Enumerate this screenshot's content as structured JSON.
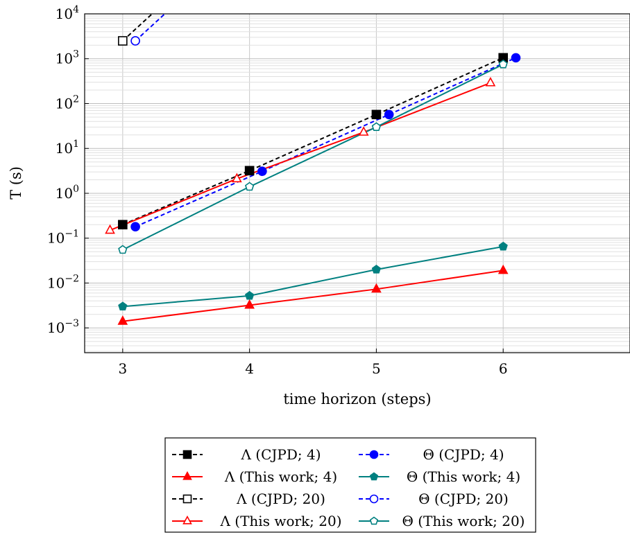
{
  "chart_data": {
    "type": "line",
    "xlabel": "time horizon (steps)",
    "ylabel": "T (s)",
    "y_scale": "log",
    "xlim": [
      2.7,
      7.0
    ],
    "ylim": [
      0.00028,
      10000
    ],
    "x_ticks": [
      3,
      4,
      5,
      6
    ],
    "x_tick_labels": [
      "3",
      "4",
      "5",
      "6"
    ],
    "y_ticks": [
      {
        "value": 0.001,
        "base": "10",
        "exp": "−3"
      },
      {
        "value": 0.01,
        "base": "10",
        "exp": "−2"
      },
      {
        "value": 0.1,
        "base": "10",
        "exp": "−1"
      },
      {
        "value": 1,
        "base": "10",
        "exp": "0"
      },
      {
        "value": 10,
        "base": "10",
        "exp": "1"
      },
      {
        "value": 100,
        "base": "10",
        "exp": "2"
      },
      {
        "value": 1000,
        "base": "10",
        "exp": "3"
      },
      {
        "value": 10000,
        "base": "10",
        "exp": "4"
      }
    ],
    "grid": true,
    "legend_position": "below",
    "series": [
      {
        "name": "Λ (CJPD; 4)",
        "color": "#000000",
        "dash": "6,4",
        "marker": "square",
        "filled": true,
        "x": [
          3,
          4,
          5,
          6
        ],
        "y": [
          0.2,
          3.2,
          57,
          1050
        ]
      },
      {
        "name": "Θ (CJPD; 4)",
        "color": "#0000ff",
        "dash": "6,4",
        "marker": "circle",
        "filled": true,
        "x": [
          3.1,
          4.1,
          5.1,
          6.1
        ],
        "y": [
          0.18,
          3.1,
          57,
          1050
        ]
      },
      {
        "name": "Λ (This work; 4)",
        "color": "#ff0000",
        "dash": "",
        "marker": "triangle",
        "filled": true,
        "x": [
          3,
          4,
          5,
          6
        ],
        "y": [
          0.0014,
          0.0032,
          0.0073,
          0.019
        ]
      },
      {
        "name": "Θ (This work; 4)",
        "color": "#008080",
        "dash": "",
        "marker": "pentagon",
        "filled": true,
        "x": [
          3,
          4,
          5,
          6
        ],
        "y": [
          0.003,
          0.0052,
          0.02,
          0.065
        ]
      },
      {
        "name": "Λ (CJPD; 20)",
        "color": "#000000",
        "dash": "6,4",
        "marker": "square",
        "filled": false,
        "x": [
          3,
          3.3
        ],
        "y": [
          2500,
          15000
        ]
      },
      {
        "name": "Θ (CJPD; 20)",
        "color": "#0000ff",
        "dash": "6,4",
        "marker": "circle",
        "filled": false,
        "x": [
          3.1,
          3.4
        ],
        "y": [
          2500,
          15000
        ]
      },
      {
        "name": "Λ (This work; 20)",
        "color": "#ff0000",
        "dash": "",
        "marker": "triangle",
        "filled": false,
        "x": [
          2.9,
          3.9,
          4.9,
          5.9
        ],
        "y": [
          0.15,
          2.1,
          23,
          290
        ]
      },
      {
        "name": "Θ (This work; 20)",
        "color": "#008080",
        "dash": "",
        "marker": "pentagon",
        "filled": false,
        "x": [
          3,
          4,
          5,
          6
        ],
        "y": [
          0.055,
          1.4,
          30,
          750
        ]
      }
    ]
  }
}
